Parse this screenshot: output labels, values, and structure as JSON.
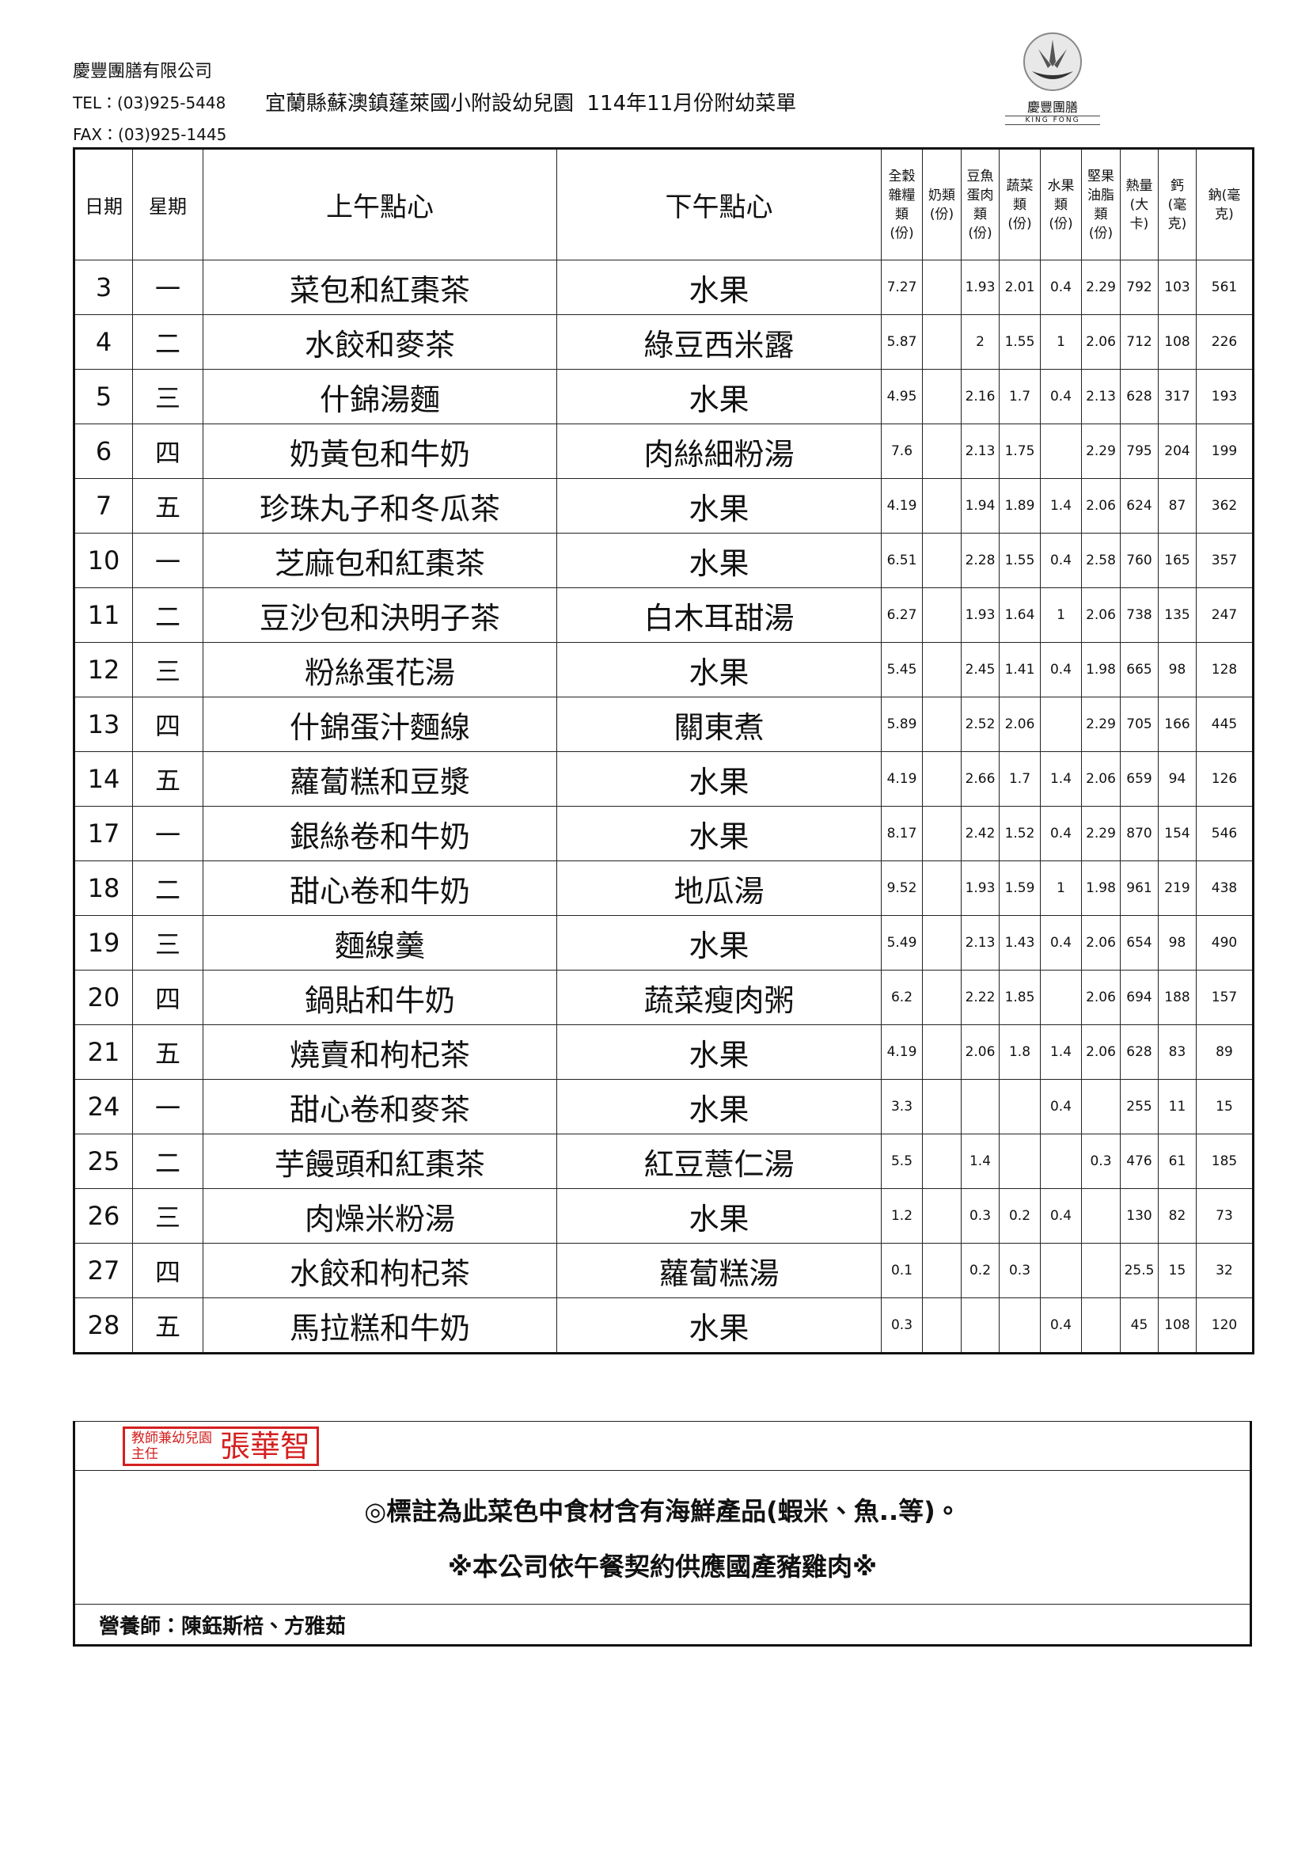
{
  "header": {
    "company": "慶豐團膳有限公司",
    "tel": "TEL：(03)925-5448",
    "fax": "FAX：(03)925-1445",
    "title": "宜蘭縣蘇澳鎮蓬萊國小附設幼兒園  114年11月份附幼菜單",
    "logo": {
      "name": "慶豐團膳",
      "english": "KING FONG"
    }
  },
  "table": {
    "headers": [
      "日期",
      "星期",
      "上午點心",
      "下午點心",
      "全穀雜糧類(份)",
      "奶類(份)",
      "豆魚蛋肉類(份)",
      "蔬菜類(份)",
      "水果類(份)",
      "堅果油脂類(份)",
      "熱量(大卡)",
      "鈣(毫克)",
      "鈉(毫克)"
    ],
    "rows": [
      [
        3,
        "一",
        "菜包和紅棗茶",
        "水果",
        7.27,
        null,
        1.93,
        2.01,
        0.4,
        2.29,
        792,
        103,
        561
      ],
      [
        4,
        "二",
        "水餃和麥茶",
        "綠豆西米露",
        5.87,
        null,
        2,
        1.55,
        1,
        2.06,
        712,
        108,
        226
      ],
      [
        5,
        "三",
        "什錦湯麵",
        "水果",
        4.95,
        null,
        2.16,
        1.7,
        0.4,
        2.13,
        628,
        317,
        193
      ],
      [
        6,
        "四",
        "奶黃包和牛奶",
        "肉絲細粉湯",
        7.6,
        null,
        2.13,
        1.75,
        null,
        2.29,
        795,
        204,
        199
      ],
      [
        7,
        "五",
        "珍珠丸子和冬瓜茶",
        "水果",
        4.19,
        null,
        1.94,
        1.89,
        1.4,
        2.06,
        624,
        87,
        362
      ],
      [
        10,
        "一",
        "芝麻包和紅棗茶",
        "水果",
        6.51,
        null,
        2.28,
        1.55,
        0.4,
        2.58,
        760,
        165,
        357
      ],
      [
        11,
        "二",
        "豆沙包和決明子茶",
        "白木耳甜湯",
        6.27,
        null,
        1.93,
        1.64,
        1,
        2.06,
        738,
        135,
        247
      ],
      [
        12,
        "三",
        "粉絲蛋花湯",
        "水果",
        5.45,
        null,
        2.45,
        1.41,
        0.4,
        1.98,
        665,
        98,
        128
      ],
      [
        13,
        "四",
        "什錦蛋汁麵線",
        "關東煮",
        5.89,
        null,
        2.52,
        2.06,
        null,
        2.29,
        705,
        166,
        445
      ],
      [
        14,
        "五",
        "蘿蔔糕和豆漿",
        "水果",
        4.19,
        null,
        2.66,
        1.7,
        1.4,
        2.06,
        659,
        94,
        126
      ],
      [
        17,
        "一",
        "銀絲卷和牛奶",
        "水果",
        8.17,
        null,
        2.42,
        1.52,
        0.4,
        2.29,
        870,
        154,
        546
      ],
      [
        18,
        "二",
        "甜心卷和牛奶",
        "地瓜湯",
        9.52,
        null,
        1.93,
        1.59,
        1,
        1.98,
        961,
        219,
        438
      ],
      [
        19,
        "三",
        "麵線羹",
        "水果",
        5.49,
        null,
        2.13,
        1.43,
        0.4,
        2.06,
        654,
        98,
        490
      ],
      [
        20,
        "四",
        "鍋貼和牛奶",
        "蔬菜瘦肉粥",
        6.2,
        null,
        2.22,
        1.85,
        null,
        2.06,
        694,
        188,
        157
      ],
      [
        21,
        "五",
        "燒賣和枸杞茶",
        "水果",
        4.19,
        null,
        2.06,
        1.8,
        1.4,
        2.06,
        628,
        83,
        89
      ],
      [
        24,
        "一",
        "甜心卷和麥茶",
        "水果",
        3.3,
        null,
        null,
        null,
        0.4,
        null,
        255,
        11,
        15
      ],
      [
        25,
        "二",
        "芋饅頭和紅棗茶",
        "紅豆薏仁湯",
        5.5,
        null,
        1.4,
        null,
        null,
        0.3,
        476,
        61,
        185
      ],
      [
        26,
        "三",
        "肉燥米粉湯",
        "水果",
        1.2,
        null,
        0.3,
        0.2,
        0.4,
        null,
        130,
        82,
        73
      ],
      [
        27,
        "四",
        "水餃和枸杞茶",
        "蘿蔔糕湯",
        0.1,
        null,
        0.2,
        0.3,
        null,
        null,
        25.5,
        15,
        32
      ],
      [
        28,
        "五",
        "馬拉糕和牛奶",
        "水果",
        0.3,
        null,
        null,
        null,
        0.4,
        null,
        45,
        108,
        120
      ]
    ]
  },
  "stamp": {
    "title": "教師兼幼兒園主任",
    "name": "張華智"
  },
  "notes": [
    "◎標註為此菜色中食材含有海鮮產品(蝦米、魚..等)。",
    "※本公司依午餐契約供應國產豬雞肉※"
  ],
  "footer": "營養師：陳鈺斯棓、方雅茹"
}
